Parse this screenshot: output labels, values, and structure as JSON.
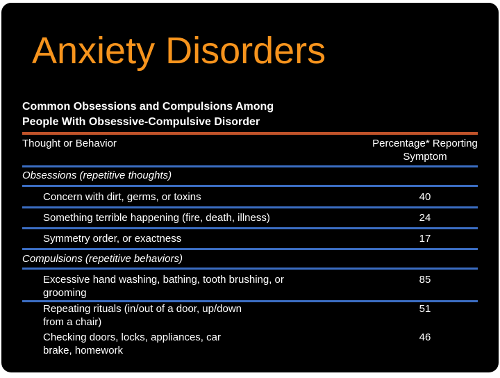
{
  "title": "Anxiety Disorders",
  "table": {
    "caption": [
      "Common Obsessions and Compulsions Among",
      "People With Obsessive-Compulsive Disorder"
    ],
    "header": [
      "Thought or Behavior",
      "Percentage* Reporting Symptom"
    ],
    "sections": [
      {
        "label": "Obsessions (repetitive thoughts)",
        "rows": [
          [
            "Concern with dirt, germs, or toxins",
            40
          ],
          [
            "Something terrible happening (fire, death, illness)",
            24
          ],
          [
            "Symmetry order, or exactness",
            17
          ]
        ]
      },
      {
        "label": "Compulsions (repetitive behaviors)",
        "rows": [
          [
            "Excessive hand washing, bathing, tooth brushing, or grooming",
            85
          ],
          [
            "Repeating rituals (in/out of a door, up/down from a chair)",
            51
          ],
          [
            "Checking doors, locks, appliances, car brake, homework",
            46
          ]
        ]
      }
    ]
  }
}
